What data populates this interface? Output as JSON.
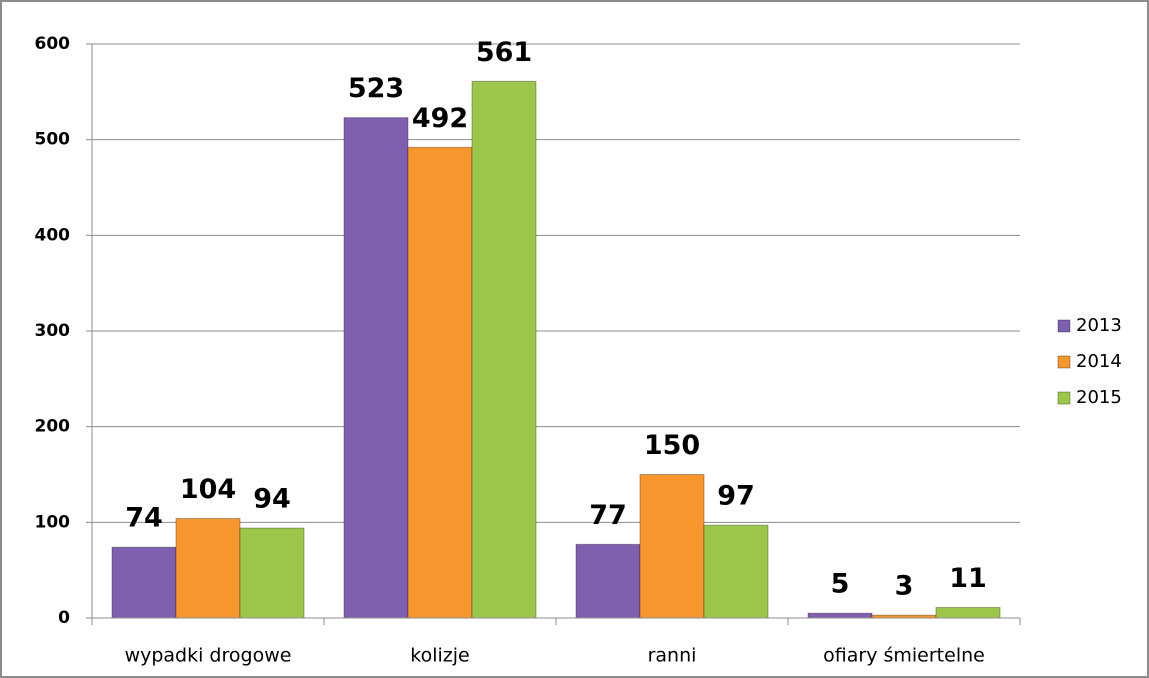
{
  "chart_data": {
    "type": "bar",
    "categories": [
      "wypadki drogowe",
      "kolizje",
      "ranni",
      "ofiary śmiertelne"
    ],
    "series": [
      {
        "name": "2013",
        "color": "#7f5fb0",
        "values": [
          74,
          523,
          77,
          5
        ]
      },
      {
        "name": "2014",
        "color": "#f7962d",
        "values": [
          104,
          492,
          150,
          3
        ]
      },
      {
        "name": "2015",
        "color": "#9cc74a",
        "values": [
          94,
          561,
          97,
          11
        ]
      }
    ],
    "ylim": [
      0,
      600
    ],
    "yticks": [
      0,
      100,
      200,
      300,
      400,
      500,
      600
    ],
    "grid": true,
    "legend": "right"
  }
}
